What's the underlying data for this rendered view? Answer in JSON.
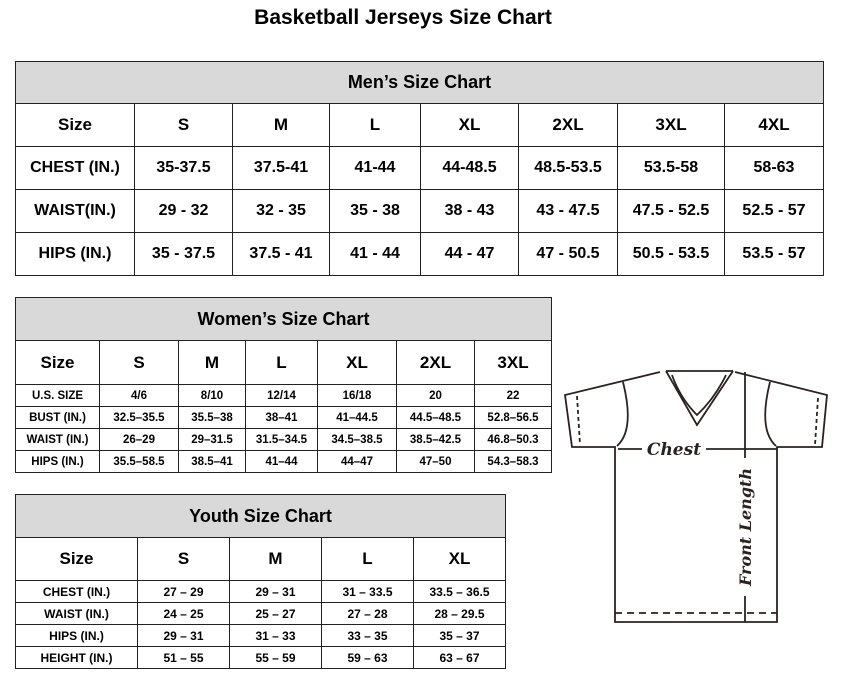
{
  "title": "Basketball Jerseys Size Chart",
  "men": {
    "title": "Men’s Size Chart",
    "headers": [
      "Size",
      "S",
      "M",
      "L",
      "XL",
      "2XL",
      "3XL",
      "4XL"
    ],
    "rows": [
      [
        "CHEST (IN.)",
        "35-37.5",
        "37.5-41",
        "41-44",
        "44-48.5",
        "48.5-53.5",
        "53.5-58",
        "58-63"
      ],
      [
        "WAIST(IN.)",
        "29 - 32",
        "32 - 35",
        "35 - 38",
        "38 - 43",
        "43 - 47.5",
        "47.5 - 52.5",
        "52.5 - 57"
      ],
      [
        "HIPS (IN.)",
        "35 - 37.5",
        "37.5 - 41",
        "41 - 44",
        "44 - 47",
        "47 - 50.5",
        "50.5 - 53.5",
        "53.5 - 57"
      ]
    ]
  },
  "women": {
    "title": "Women’s Size Chart",
    "headers": [
      "Size",
      "S",
      "M",
      "L",
      "XL",
      "2XL",
      "3XL"
    ],
    "rows": [
      [
        "U.S. SIZE",
        "4/6",
        "8/10",
        "12/14",
        "16/18",
        "20",
        "22"
      ],
      [
        "BUST (IN.)",
        "32.5–35.5",
        "35.5–38",
        "38–41",
        "41–44.5",
        "44.5–48.5",
        "52.8–56.5"
      ],
      [
        "WAIST (IN.)",
        "26–29",
        "29–31.5",
        "31.5–34.5",
        "34.5–38.5",
        "38.5–42.5",
        "46.8–50.3"
      ],
      [
        "HIPS (IN.)",
        "35.5–58.5",
        "38.5–41",
        "41–44",
        "44–47",
        "47–50",
        "54.3–58.3"
      ]
    ]
  },
  "youth": {
    "title": "Youth Size Chart",
    "headers": [
      "Size",
      "S",
      "M",
      "L",
      "XL"
    ],
    "rows": [
      [
        "CHEST (IN.)",
        "27 – 29",
        "29 – 31",
        "31 – 33.5",
        "33.5 – 36.5"
      ],
      [
        "WAIST (IN.)",
        "24 – 25",
        "25 – 27",
        "27 – 28",
        "28 – 29.5"
      ],
      [
        "HIPS (IN.)",
        "29 – 31",
        "31 – 33",
        "33 – 35",
        "35 – 37"
      ],
      [
        "HEIGHT (IN.)",
        "51 – 55",
        "55 – 59",
        "59 – 63",
        "63 – 67"
      ]
    ]
  },
  "diagram": {
    "chest_label": "Chest",
    "length_label": "Front Length",
    "line_color": "#2a2220"
  }
}
